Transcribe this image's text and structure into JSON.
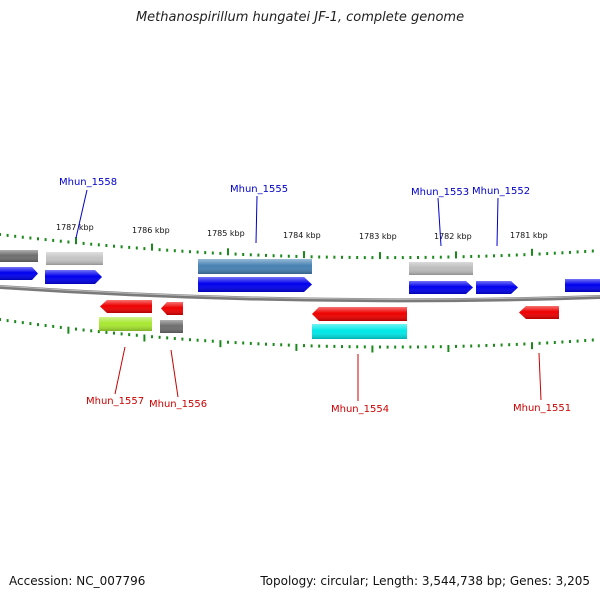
{
  "title": "Methanospirillum hungatei JF-1, complete genome",
  "footer": {
    "accession": "Accession: NC_007796",
    "summary": "Topology: circular; Length: 3,544,738 bp; Genes: 3,205"
  },
  "scale_labels": [
    "1787 kbp",
    "1786 kbp",
    "1785 kbp",
    "1784 kbp",
    "1783 kbp",
    "1782 kbp",
    "1781 kbp"
  ],
  "colors": {
    "backbone": "#808080",
    "tick": "#1a8a1a",
    "label_blue": "#0000cc",
    "label_red": "#cc0000",
    "blue": "#0000ee",
    "steelblue": "#4682b4",
    "lightgray": "#c0c0c0",
    "darkgray": "#707070",
    "red": "#ee0000",
    "lime": "#a8e830",
    "cyan": "#00e8e8"
  },
  "gene_labels": {
    "top": [
      "Mhun_1558",
      "Mhun_1555",
      "Mhun_1553",
      "Mhun_1552"
    ],
    "bottom": [
      "Mhun_1557",
      "Mhun_1556",
      "Mhun_1554",
      "Mhun_1551"
    ]
  }
}
